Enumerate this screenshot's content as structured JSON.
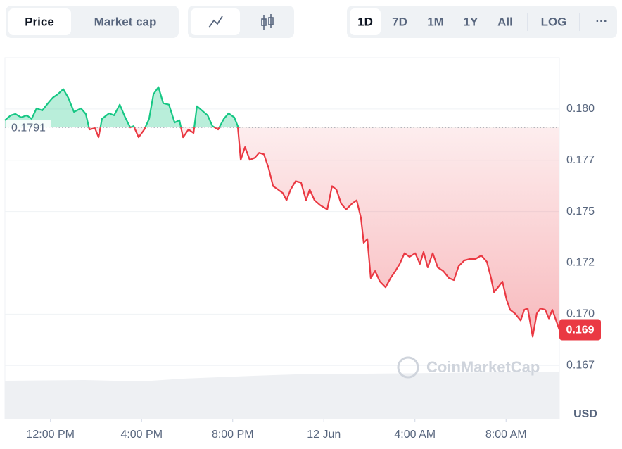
{
  "tabs": {
    "metric": [
      "Price",
      "Market cap"
    ],
    "ranges": [
      "1D",
      "7D",
      "1M",
      "1Y",
      "All"
    ],
    "scale": "LOG",
    "more": "···"
  },
  "chart_data": {
    "type": "line",
    "x": [
      0,
      0.25,
      0.46,
      0.71,
      0.96,
      1.17,
      1.39,
      1.64,
      1.89,
      2.1,
      2.32,
      2.56,
      2.78,
      3.03,
      3.34,
      3.55,
      3.71,
      3.95,
      4.11,
      4.26,
      4.57,
      4.79,
      5.04,
      5.28,
      5.5,
      5.65,
      5.87,
      6.12,
      6.33,
      6.52,
      6.74,
      6.95,
      7.2,
      7.45,
      7.66,
      7.82,
      8.06,
      8.28,
      8.43,
      8.65,
      8.9,
      9.11,
      9.36,
      9.61,
      9.82,
      10.07,
      10.22,
      10.35,
      10.54,
      10.75,
      10.97,
      11.16,
      11.37,
      11.58,
      11.77,
      11.99,
      12.2,
      12.36,
      12.54,
      12.76,
      13.0,
      13.22,
      13.38,
      13.59,
      13.84,
      14.15,
      14.36,
      14.55,
      14.76,
      14.98,
      15.23,
      15.44,
      15.63,
      15.75,
      15.91,
      16.06,
      16.25,
      16.46,
      16.71,
      16.93,
      17.14,
      17.33,
      17.54,
      17.76,
      18.01,
      18.22,
      18.38,
      18.56,
      18.78,
      19.0,
      19.24,
      19.49,
      19.71,
      19.92,
      20.17,
      20.42,
      20.66,
      20.91,
      21.16,
      21.34,
      21.47,
      21.65,
      21.84,
      22.02,
      22.18,
      22.39,
      22.64,
      22.8,
      22.95,
      23.17,
      23.35,
      23.51,
      23.72,
      23.88,
      24.03,
      24.34
    ],
    "values": [
      0.17945,
      0.17969,
      0.17976,
      0.17959,
      0.17969,
      0.17952,
      0.18003,
      0.17993,
      0.18028,
      0.18055,
      0.18072,
      0.18097,
      0.18055,
      0.17986,
      0.18003,
      0.17976,
      0.179,
      0.17907,
      0.17862,
      0.17952,
      0.17979,
      0.17969,
      0.18021,
      0.17959,
      0.1791,
      0.17917,
      0.17862,
      0.179,
      0.17952,
      0.18072,
      0.18107,
      0.18028,
      0.18021,
      0.17934,
      0.17945,
      0.17862,
      0.179,
      0.17883,
      0.18014,
      0.17993,
      0.17969,
      0.17917,
      0.179,
      0.17952,
      0.17979,
      0.17959,
      0.17917,
      0.17752,
      0.17814,
      0.17752,
      0.17762,
      0.17786,
      0.17779,
      0.1771,
      0.17624,
      0.17607,
      0.1759,
      0.17555,
      0.17607,
      0.17648,
      0.17641,
      0.17555,
      0.17607,
      0.17555,
      0.17531,
      0.1751,
      0.17624,
      0.17607,
      0.17538,
      0.1751,
      0.17538,
      0.17555,
      0.17469,
      0.17348,
      0.17366,
      0.17176,
      0.1721,
      0.17159,
      0.17131,
      0.17176,
      0.1721,
      0.17245,
      0.17297,
      0.17279,
      0.17297,
      0.17245,
      0.17303,
      0.17228,
      0.17297,
      0.17228,
      0.1721,
      0.17176,
      0.17166,
      0.17234,
      0.17262,
      0.17269,
      0.17269,
      0.17286,
      0.17255,
      0.17176,
      0.17107,
      0.17131,
      0.17159,
      0.17072,
      0.17021,
      0.17003,
      0.16969,
      0.17021,
      0.17028,
      0.1689,
      0.17003,
      0.17028,
      0.17021,
      0.16979,
      0.17021,
      0.16924
    ],
    "baseline": 0.1791,
    "current_label": "0.169",
    "colors": {
      "above": "#16c784",
      "below": "#ea3943"
    },
    "xlim": [
      0,
      24.34
    ],
    "xticks": [
      {
        "value": 2,
        "label": "12:00 PM"
      },
      {
        "value": 6,
        "label": "4:00 PM"
      },
      {
        "value": 10,
        "label": "8:00 PM"
      },
      {
        "value": 14,
        "label": "12 Jun"
      },
      {
        "value": 18,
        "label": "4:00 AM"
      },
      {
        "value": 22,
        "label": "8:00 AM"
      }
    ],
    "ylim": [
      0.1649,
      0.1825
    ],
    "yticks": [
      {
        "value": 0.18,
        "label": "0.180"
      },
      {
        "value": 0.1775,
        "label": "0.177"
      },
      0.175,
      {
        "value": 0.1725,
        "label": "0.172"
      },
      {
        "value": 0.17,
        "label": "0.170"
      },
      {
        "value": 0.1675,
        "label": "0.167"
      }
    ],
    "unit": "USD",
    "watermark": "CoinMarketCap",
    "grid": true
  }
}
